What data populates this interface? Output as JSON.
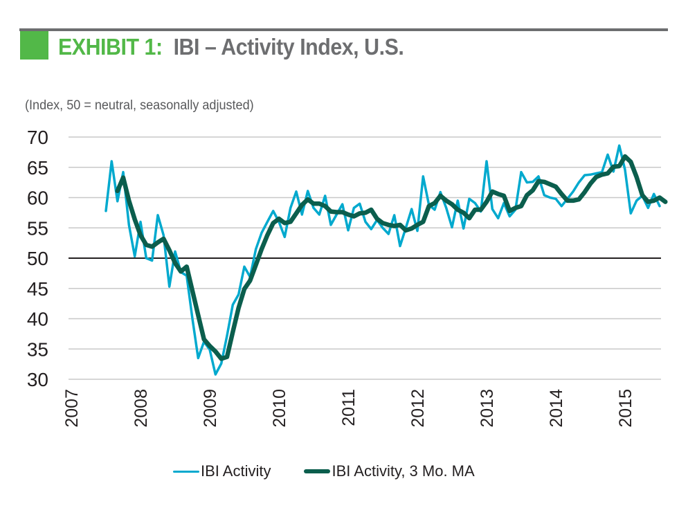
{
  "header": {
    "exhibit_label": "EXHIBIT 1:",
    "title": "IBI – Activity Index, U.S.",
    "subtitle": "(Index, 50 = neutral, seasonally adjusted)",
    "accent_color": "#52b848",
    "title_color": "#6d6e70"
  },
  "legend": {
    "items": [
      {
        "label": "IBI Activity",
        "color": "#00a9ce"
      },
      {
        "label": "IBI Activity, 3 Mo. MA",
        "color": "#0b5e4d"
      }
    ]
  },
  "chart_data": {
    "type": "line",
    "title": "IBI – Activity Index, U.S.",
    "subtitle": "(Index, 50 = neutral, seasonally adjusted)",
    "xlabel": "",
    "ylabel": "",
    "ylim": [
      30,
      70
    ],
    "yticks": [
      70,
      65,
      60,
      55,
      50,
      45,
      40,
      35,
      30
    ],
    "ytick_labels": [
      "70",
      "65",
      "60",
      "55",
      "50",
      "45",
      "40",
      "35",
      "30"
    ],
    "xlim": [
      "2007-01",
      "2015-07"
    ],
    "xtick_labels": [
      "2007",
      "2008",
      "2009",
      "2010",
      "2011",
      "2012",
      "2013",
      "2014",
      "2015"
    ],
    "reference_line": 50,
    "grid": "horizontal",
    "legend_position": "bottom",
    "frequency": "monthly",
    "series": [
      {
        "name": "IBI Activity",
        "color": "#00a9ce",
        "start": "2007-07",
        "values": [
          57.8,
          66.0,
          59.4,
          64.2,
          55.5,
          50.3,
          56.0,
          50.0,
          49.6,
          57.1,
          53.8,
          45.3,
          51.1,
          47.7,
          47.1,
          40.0,
          33.5,
          36.2,
          34.9,
          30.8,
          32.6,
          37.2,
          42.3,
          44.0,
          48.6,
          46.9,
          51.5,
          54.2,
          56.0,
          57.8,
          56.0,
          53.5,
          58.3,
          61.0,
          57.2,
          61.1,
          58.3,
          57.2,
          60.3,
          55.5,
          57.2,
          58.9,
          54.6,
          58.3,
          59.0,
          56.0,
          54.8,
          56.3,
          55.0,
          54.0,
          57.1,
          52.0,
          55.0,
          58.1,
          54.5,
          63.5,
          58.8,
          58.0,
          60.9,
          58.3,
          55.1,
          59.5,
          54.9,
          59.8,
          59.1,
          57.7,
          66.0,
          58.1,
          56.6,
          59.1,
          56.9,
          58.0,
          64.2,
          62.5,
          62.6,
          63.5,
          60.4,
          60.0,
          59.8,
          58.6,
          59.8,
          61.0,
          62.5,
          63.7,
          63.8,
          64.0,
          64.2,
          67.1,
          64.3,
          68.6,
          64.6,
          57.4,
          59.5,
          60.3,
          58.3,
          60.6,
          58.6
        ]
      },
      {
        "name": "IBI Activity, 3 Mo. MA",
        "color": "#0b5e4d",
        "start": "2007-09",
        "values": [
          61.1,
          63.3,
          59.5,
          56.4,
          53.8,
          52.2,
          51.9,
          52.6,
          53.2,
          51.3,
          49.2,
          47.8,
          48.6,
          44.6,
          40.6,
          36.6,
          35.5,
          34.6,
          33.4,
          33.7,
          37.8,
          41.8,
          44.9,
          46.3,
          48.9,
          51.5,
          53.8,
          55.8,
          56.5,
          55.8,
          56.0,
          57.4,
          58.8,
          59.7,
          59.0,
          59.0,
          58.6,
          57.7,
          57.6,
          57.6,
          57.2,
          56.9,
          57.4,
          57.5,
          58.0,
          56.5,
          55.8,
          55.5,
          55.3,
          55.5,
          54.6,
          54.9,
          55.5,
          56.0,
          58.6,
          59.1,
          60.3,
          59.5,
          58.9,
          58.0,
          57.5,
          56.6,
          58.0,
          58.0,
          59.3,
          61.0,
          60.6,
          60.3,
          57.8,
          58.3,
          58.6,
          60.4,
          61.2,
          62.7,
          62.6,
          62.2,
          61.8,
          60.6,
          59.5,
          59.5,
          59.7,
          60.9,
          62.3,
          63.4,
          63.8,
          64.0,
          65.1,
          65.2,
          66.8,
          65.9,
          63.4,
          60.4,
          59.3,
          59.5,
          60.0,
          59.3
        ]
      }
    ]
  }
}
